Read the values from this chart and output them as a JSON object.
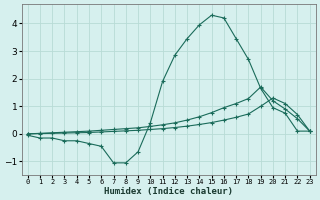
{
  "xlabel": "Humidex (Indice chaleur)",
  "bg_color": "#d6f0ee",
  "grid_color": "#b8dbd6",
  "line_color": "#1a6b5a",
  "xlim": [
    -0.5,
    23.5
  ],
  "ylim": [
    -1.5,
    4.7
  ],
  "x_ticks": [
    0,
    1,
    2,
    3,
    4,
    5,
    6,
    7,
    8,
    9,
    10,
    11,
    12,
    13,
    14,
    15,
    16,
    17,
    18,
    19,
    20,
    21,
    22,
    23
  ],
  "y_ticks": [
    -1,
    0,
    1,
    2,
    3,
    4
  ],
  "line1_x": [
    0,
    1,
    2,
    3,
    4,
    5,
    6,
    7,
    8,
    9,
    10,
    11,
    12,
    13,
    14,
    15,
    16,
    17,
    18,
    19,
    20,
    21,
    22,
    23
  ],
  "line1_y": [
    -0.05,
    -0.15,
    -0.15,
    -0.25,
    -0.25,
    -0.35,
    -0.45,
    -1.05,
    -1.05,
    -0.65,
    0.4,
    1.9,
    2.85,
    3.45,
    3.95,
    4.3,
    4.2,
    3.45,
    2.7,
    1.65,
    0.95,
    0.75,
    0.1,
    0.1
  ],
  "line2_x": [
    0,
    1,
    2,
    3,
    4,
    5,
    6,
    7,
    8,
    9,
    10,
    11,
    12,
    13,
    14,
    15,
    16,
    17,
    18,
    19,
    20,
    21,
    22,
    23
  ],
  "line2_y": [
    0.0,
    0.02,
    0.04,
    0.06,
    0.08,
    0.1,
    0.13,
    0.16,
    0.19,
    0.22,
    0.27,
    0.33,
    0.4,
    0.5,
    0.62,
    0.77,
    0.95,
    1.1,
    1.28,
    1.7,
    1.2,
    0.9,
    0.55,
    0.1
  ],
  "line3_x": [
    0,
    1,
    2,
    3,
    4,
    5,
    6,
    7,
    8,
    9,
    10,
    11,
    12,
    13,
    14,
    15,
    16,
    17,
    18,
    19,
    20,
    21,
    22,
    23
  ],
  "line3_y": [
    0.0,
    0.01,
    0.02,
    0.03,
    0.04,
    0.05,
    0.07,
    0.09,
    0.11,
    0.13,
    0.16,
    0.19,
    0.23,
    0.28,
    0.34,
    0.41,
    0.5,
    0.6,
    0.72,
    1.0,
    1.3,
    1.1,
    0.7,
    0.1
  ]
}
